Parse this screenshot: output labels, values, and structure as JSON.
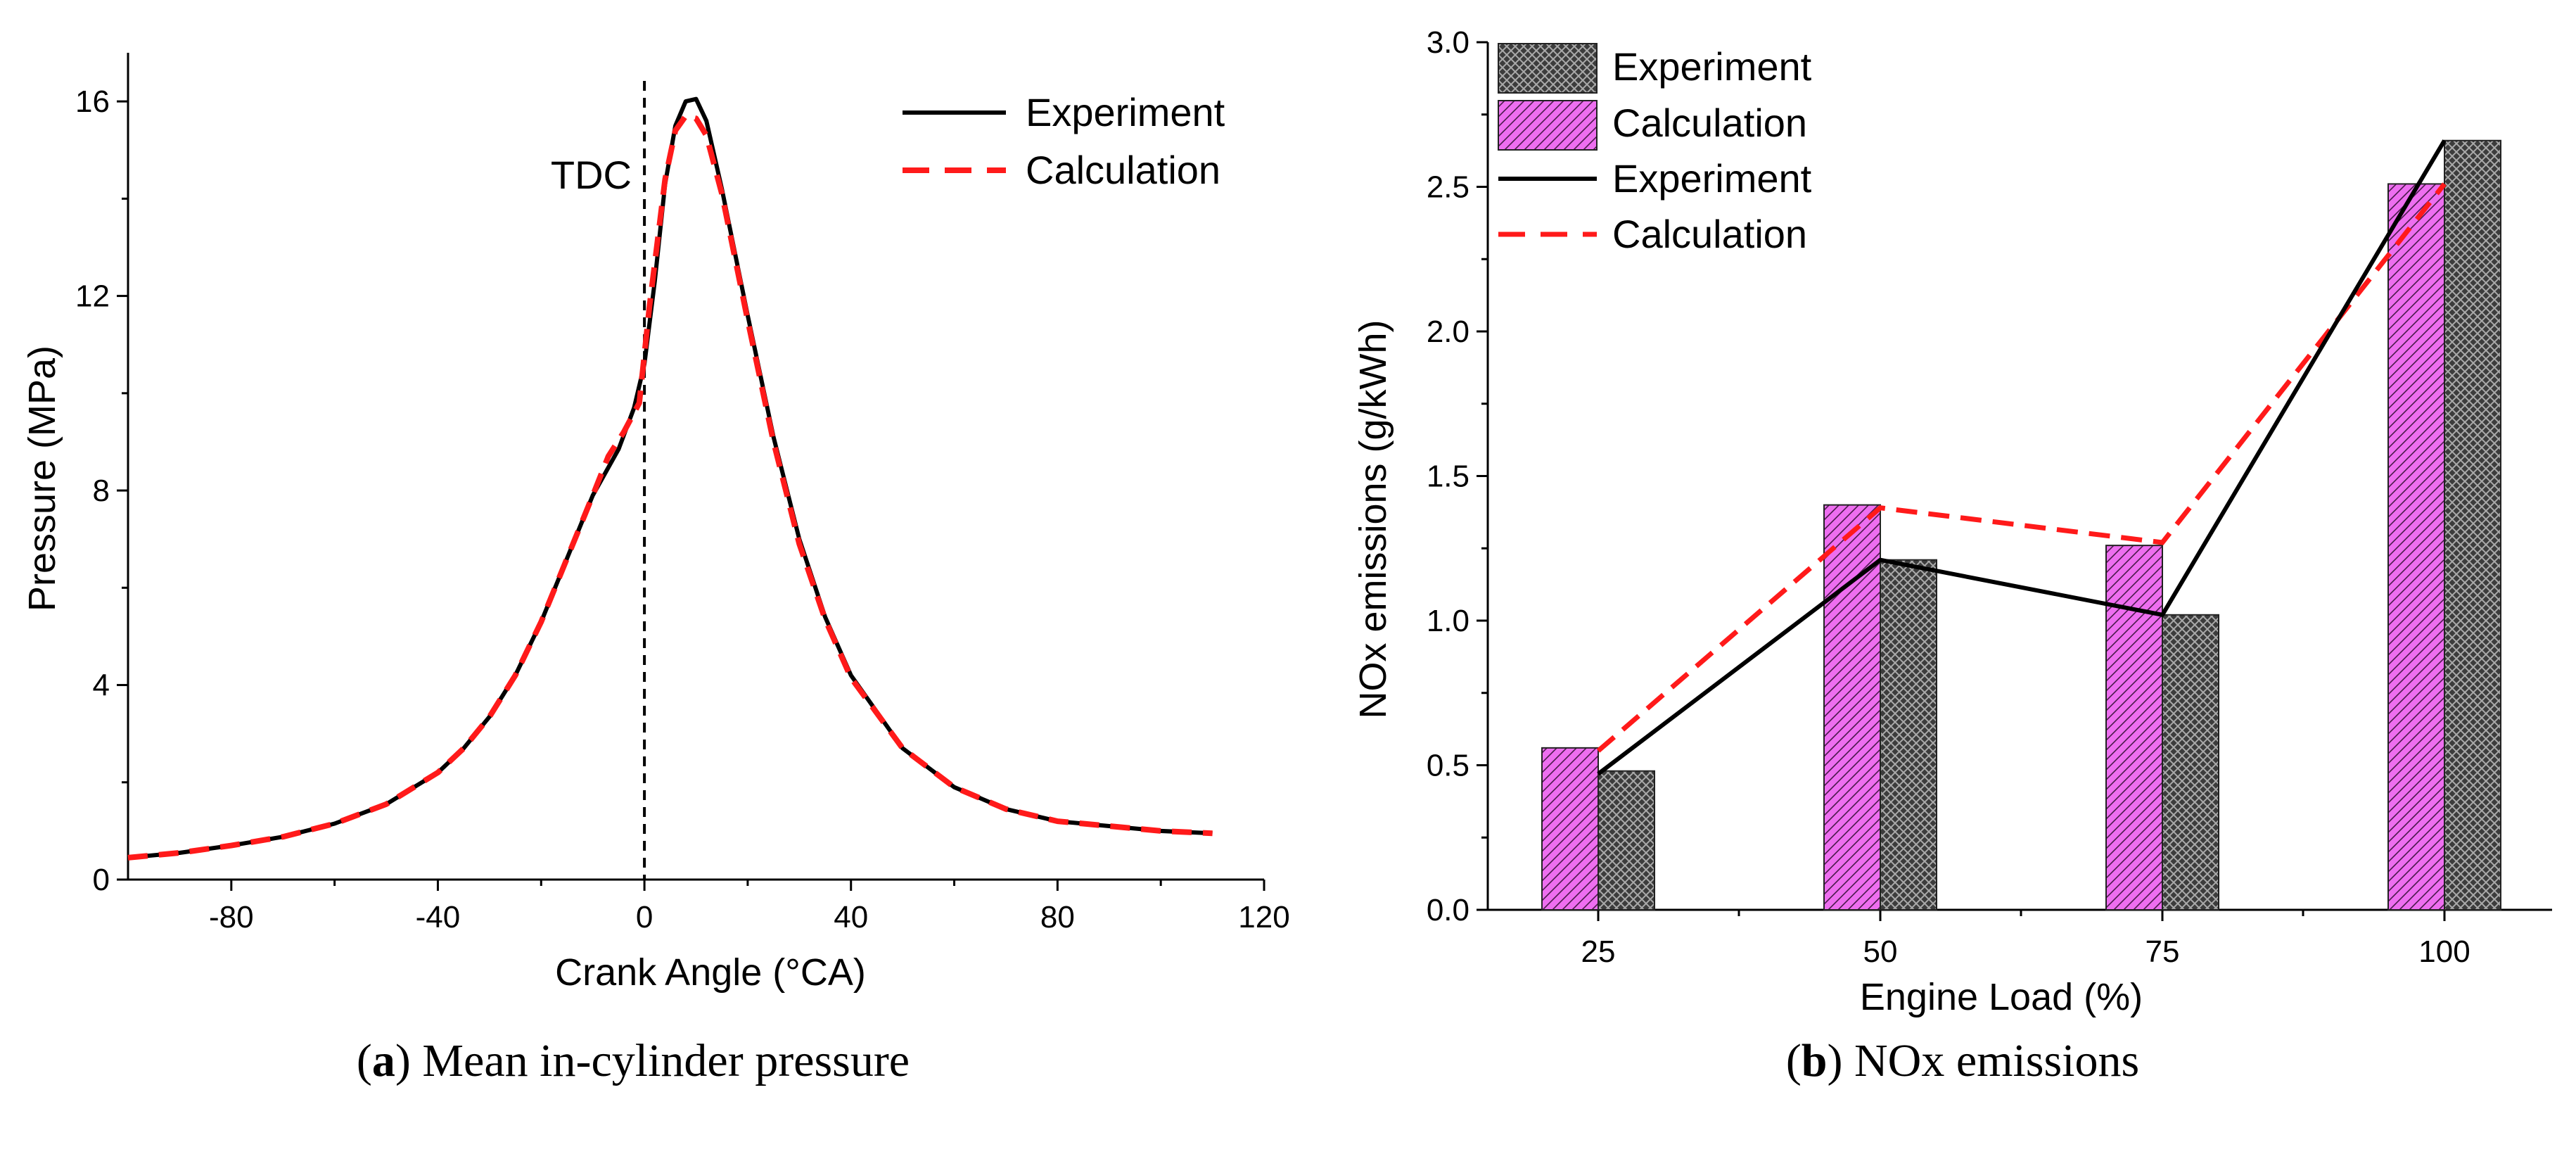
{
  "colors": {
    "experiment": "#000000",
    "calculation": "#ff1a1a",
    "bar_experiment": "#3c3c3c",
    "bar_calculation": "#ee6ef0",
    "axis": "#000000",
    "tdc_line": "#000000"
  },
  "captions": {
    "a": {
      "label": "a",
      "text": "Mean in-cylinder pressure"
    },
    "b": {
      "label": "b",
      "text": "NOx emissions"
    }
  },
  "chart_data": [
    {
      "id": "a",
      "type": "line",
      "xlabel": "Crank Angle (°CA)",
      "ylabel": "Pressure (MPa)",
      "xlim": [
        -100,
        120
      ],
      "ylim": [
        0,
        17
      ],
      "xticks": [
        -80,
        -40,
        0,
        40,
        80,
        120
      ],
      "yticks": [
        0,
        4,
        8,
        12,
        16
      ],
      "grid": false,
      "legend_position": "top-right",
      "annotation": {
        "text": "TDC",
        "x": 0
      },
      "series": [
        {
          "name": "Experiment",
          "style": "solid",
          "x": [
            -100,
            -90,
            -80,
            -70,
            -60,
            -50,
            -40,
            -35,
            -30,
            -25,
            -20,
            -15,
            -10,
            -5,
            -2,
            0,
            2,
            4,
            6,
            8,
            10,
            12,
            15,
            20,
            25,
            30,
            35,
            40,
            50,
            60,
            70,
            80,
            90,
            100,
            110
          ],
          "y": [
            0.45,
            0.55,
            0.7,
            0.88,
            1.15,
            1.55,
            2.2,
            2.7,
            3.35,
            4.2,
            5.3,
            6.6,
            7.9,
            8.85,
            9.7,
            10.6,
            12.3,
            14.3,
            15.5,
            16.0,
            16.05,
            15.6,
            14.2,
            11.6,
            9.1,
            7.0,
            5.4,
            4.2,
            2.7,
            1.9,
            1.45,
            1.2,
            1.1,
            1.0,
            0.95
          ]
        },
        {
          "name": "Calculation",
          "style": "dashed",
          "x": [
            -100,
            -90,
            -80,
            -70,
            -60,
            -50,
            -40,
            -35,
            -30,
            -25,
            -20,
            -15,
            -10,
            -7,
            -4,
            -1,
            1,
            4,
            6,
            8,
            10,
            12,
            15,
            20,
            25,
            30,
            35,
            40,
            50,
            60,
            70,
            80,
            90,
            100,
            110
          ],
          "y": [
            0.45,
            0.55,
            0.7,
            0.88,
            1.15,
            1.55,
            2.2,
            2.7,
            3.35,
            4.2,
            5.3,
            6.6,
            7.9,
            8.7,
            9.2,
            9.8,
            11.8,
            14.4,
            15.4,
            15.7,
            15.65,
            15.3,
            14.1,
            11.5,
            9.0,
            6.9,
            5.35,
            4.15,
            2.7,
            1.9,
            1.45,
            1.2,
            1.1,
            1.0,
            0.95
          ]
        }
      ]
    },
    {
      "id": "b",
      "type": "bar",
      "xlabel": "Engine Load (%)",
      "ylabel": "NOx emissions (g/kWh)",
      "categories": [
        "25",
        "50",
        "75",
        "100"
      ],
      "ylim": [
        0,
        3.0
      ],
      "yticks": [
        "0.0",
        "0.5",
        "1.0",
        "1.5",
        "2.0",
        "2.5",
        "3.0"
      ],
      "grid": false,
      "legend_position": "top-left",
      "series": [
        {
          "name": "Experiment",
          "kind": "bar",
          "pattern": "crosshatch",
          "values": [
            0.48,
            1.21,
            1.02,
            2.66
          ]
        },
        {
          "name": "Calculation",
          "kind": "bar",
          "pattern": "diagonal",
          "values": [
            0.56,
            1.4,
            1.26,
            2.51
          ]
        },
        {
          "name": "Experiment",
          "kind": "line",
          "style": "solid",
          "values": [
            0.47,
            1.21,
            1.02,
            2.66
          ]
        },
        {
          "name": "Calculation",
          "kind": "line",
          "style": "dashed",
          "values": [
            0.55,
            1.39,
            1.27,
            2.51
          ]
        }
      ]
    }
  ]
}
